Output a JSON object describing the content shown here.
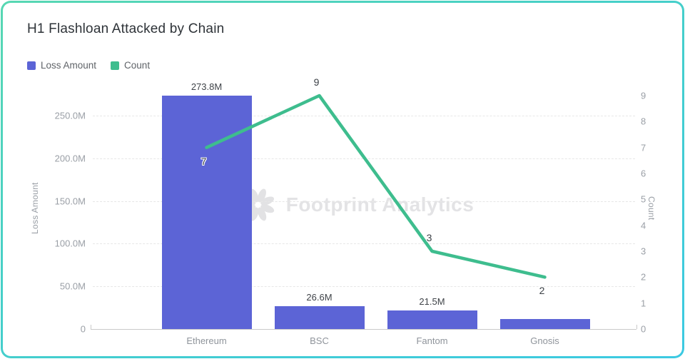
{
  "card": {
    "title": "H1 Flashloan Attacked by Chain"
  },
  "watermark": {
    "text": "Footprint Analytics",
    "icon": "footprint-flower-icon"
  },
  "colors": {
    "bar": "#5c64d6",
    "line": "#3ebd8e",
    "border_gradient_start": "#57d7b2",
    "border_gradient_end": "#3bc9e2",
    "grid": "#e7e7e7",
    "axis_line": "#c9c9c9",
    "tick_text": "#9a9fa6",
    "title_text": "#2e3338",
    "watermark_text": "#e3e3e5"
  },
  "legend": {
    "items": [
      {
        "label": "Loss Amount",
        "color": "#5c64d6"
      },
      {
        "label": "Count",
        "color": "#3ebd8e"
      }
    ]
  },
  "chart_data": {
    "type": "combo-bar-line",
    "categories": [
      "Ethereum",
      "BSC",
      "Fantom",
      "Gnosis"
    ],
    "series": [
      {
        "name": "Loss Amount",
        "type": "bar",
        "axis": "left",
        "color": "#5c64d6",
        "values_millions": [
          273.8,
          26.6,
          21.5,
          11.6
        ],
        "value_labels": [
          "273.8M",
          "26.6M",
          "21.5M",
          ""
        ],
        "note": "Gnosis bar shows no data label; 11.6M estimated from bar height"
      },
      {
        "name": "Count",
        "type": "line",
        "axis": "right",
        "color": "#3ebd8e",
        "values": [
          7,
          9,
          3,
          2
        ],
        "value_labels": [
          "7",
          "9",
          "3",
          "2"
        ],
        "label_positions": [
          "below",
          "above",
          "above",
          "below"
        ]
      }
    ],
    "left_axis": {
      "label": "Loss Amount",
      "ticks": [
        "0",
        "50.0M",
        "100.0M",
        "150.0M",
        "200.0M",
        "250.0M"
      ],
      "tick_values_millions": [
        0,
        50,
        100,
        150,
        200,
        250
      ],
      "range_millions": [
        0,
        250
      ]
    },
    "right_axis": {
      "label": "Count",
      "ticks": [
        "0",
        "1",
        "2",
        "3",
        "4",
        "5",
        "6",
        "7",
        "8",
        "9"
      ],
      "tick_values": [
        0,
        1,
        2,
        3,
        4,
        5,
        6,
        7,
        8,
        9
      ],
      "range": [
        0,
        9
      ]
    },
    "grid": {
      "horizontal_dashed": true,
      "legend_position": "top-left"
    }
  }
}
